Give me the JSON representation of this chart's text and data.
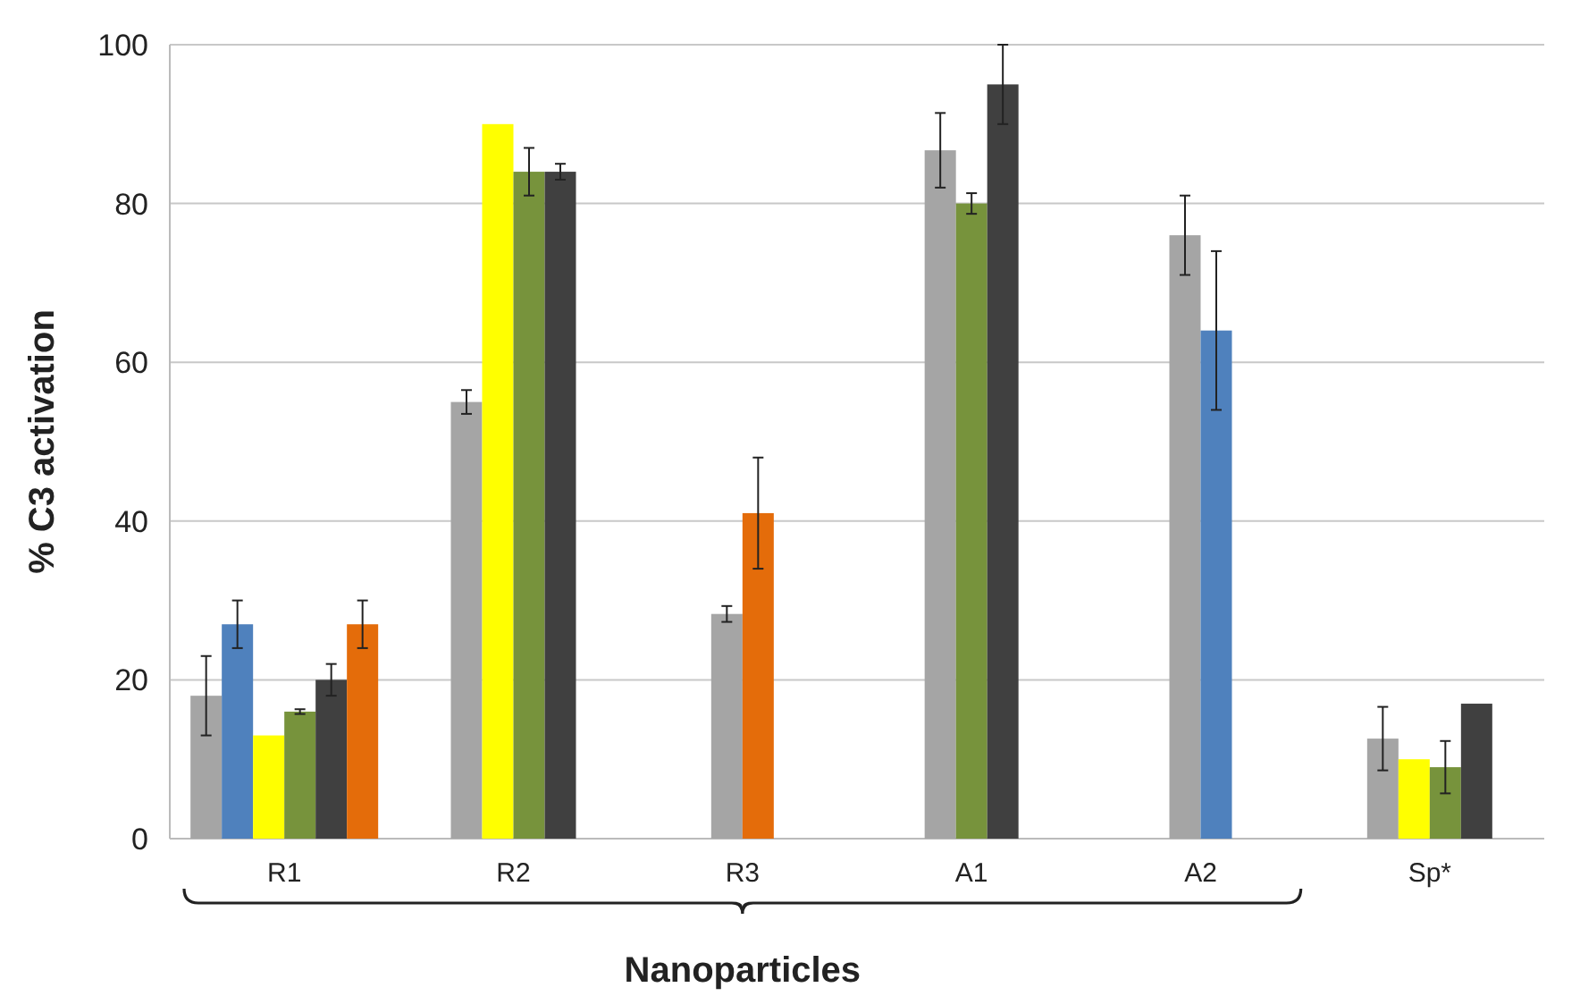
{
  "chart_data": {
    "type": "bar",
    "ylabel": "% C3 activation",
    "xlabel": "Nanoparticles",
    "categories": [
      "R1",
      "R2",
      "R3",
      "A1",
      "A2",
      "Sp*"
    ],
    "series": [
      {
        "color": "#a5a5a5",
        "values": [
          18,
          55,
          28.3,
          86.7,
          76,
          12.6
        ],
        "errors": [
          5,
          1.5,
          1,
          4.7,
          5,
          4
        ]
      },
      {
        "color": "#4f81bd",
        "values": [
          27,
          null,
          null,
          null,
          64,
          null
        ],
        "errors": [
          3,
          null,
          null,
          null,
          10,
          null
        ]
      },
      {
        "color": "#ffff00",
        "values": [
          13,
          90,
          null,
          null,
          null,
          10
        ]
      },
      {
        "color": "#77933c",
        "values": [
          16,
          84,
          null,
          80,
          null,
          9
        ],
        "errors": [
          0.3,
          3,
          null,
          1.3,
          null,
          3.3
        ]
      },
      {
        "color": "#404040",
        "values": [
          20,
          84,
          null,
          95,
          null,
          17
        ],
        "errors": [
          2,
          1,
          null,
          5,
          null,
          null
        ]
      },
      {
        "color": "#e46c0a",
        "values": [
          27,
          null,
          41,
          null,
          null,
          null
        ],
        "errors": [
          3,
          null,
          7,
          null,
          null,
          null
        ]
      }
    ],
    "ylim": [
      0,
      100
    ],
    "yticks": [
      0,
      20,
      40,
      60,
      80,
      100
    ],
    "grid": "y"
  }
}
